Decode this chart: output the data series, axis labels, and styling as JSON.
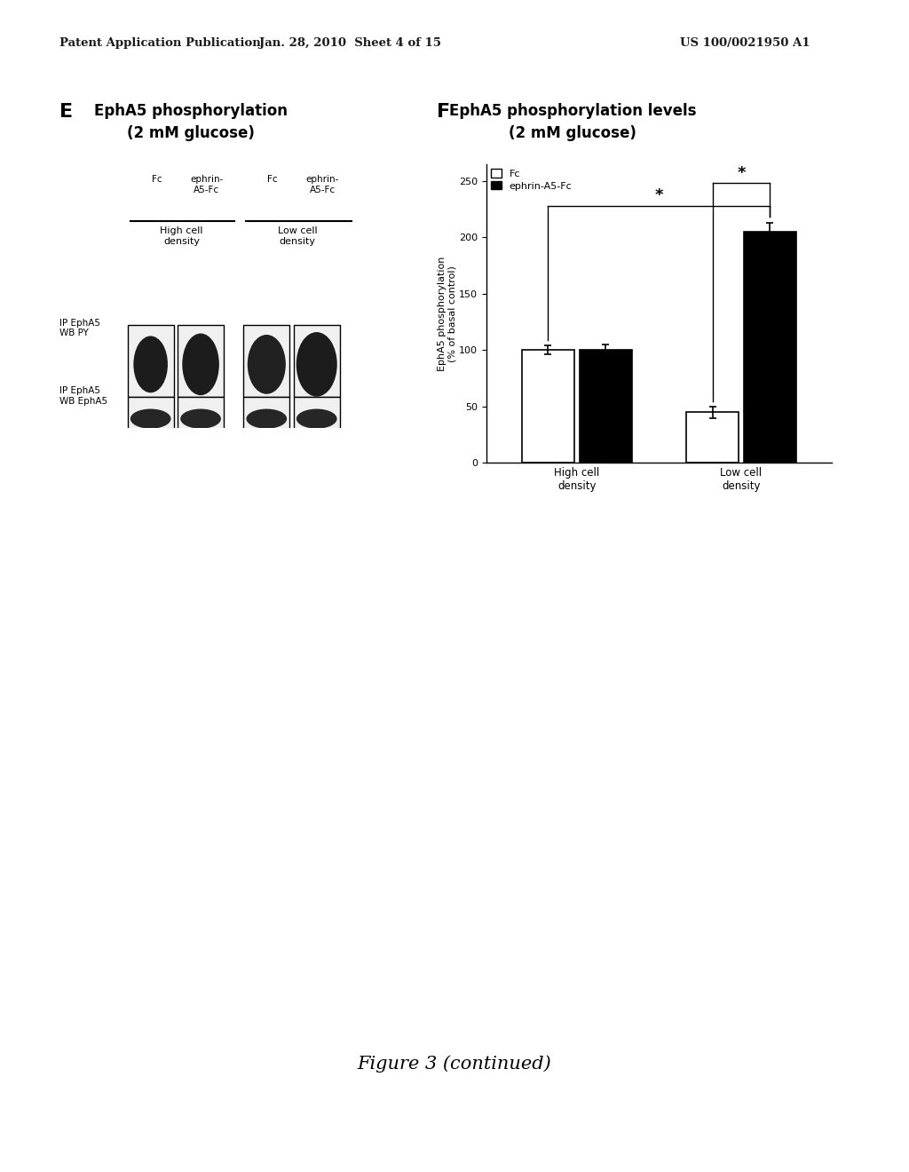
{
  "header_left": "Patent Application Publication",
  "header_mid": "Jan. 28, 2010  Sheet 4 of 15",
  "header_right": "US 100/0021950 A1",
  "panel_E_label": "E",
  "panel_E_title1": "EphA5 phosphorylation",
  "panel_E_title2": "(2 mM glucose)",
  "panel_F_label": "F",
  "panel_F_title1": "EphA5 phosphorylation levels",
  "panel_F_title2": "(2 mM glucose)",
  "blot_col_labels": [
    "Fc",
    "ephrin-\nA5-Fc",
    "Fc",
    "ephrin-\nA5-Fc"
  ],
  "blot_group_labels": [
    "High cell\ndensity",
    "Low cell\ndensity"
  ],
  "blot_row_labels": [
    "IP EphA5\nWB PY",
    "IP EphA5\nWB EphA5"
  ],
  "bar_categories": [
    "High cell\ndensity",
    "Low cell\ndensity"
  ],
  "bar_values_fc": [
    100,
    45
  ],
  "bar_values_ephrin": [
    100,
    205
  ],
  "bar_errors_fc": [
    4,
    5
  ],
  "bar_errors_ephrin": [
    5,
    8
  ],
  "bar_color_fc": "#ffffff",
  "bar_color_ephrin": "#000000",
  "bar_edge_color": "#000000",
  "ylabel": "EphA5 phosphorylation\n(% of basal control)",
  "ylim": [
    0,
    265
  ],
  "yticks": [
    0,
    50,
    100,
    150,
    200,
    250
  ],
  "legend_fc": "Fc",
  "legend_ephrin": "ephrin-A5-Fc",
  "figure_caption": "Figure 3 (continued)",
  "background_color": "#ffffff"
}
